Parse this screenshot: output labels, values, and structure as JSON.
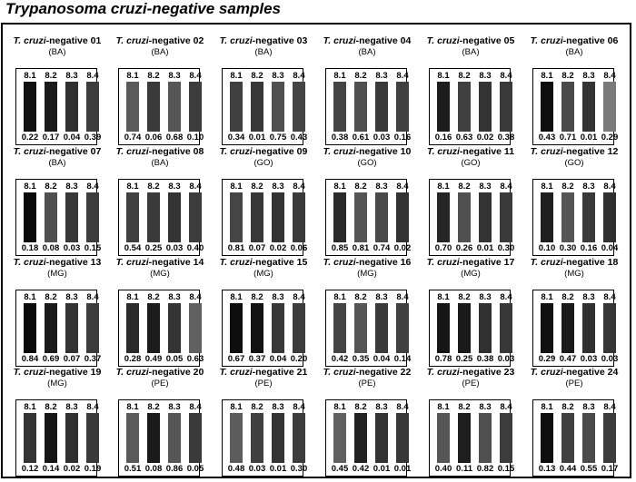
{
  "title": {
    "italic": "Trypanosoma cruzi",
    "rest": "-negative samples"
  },
  "name_prefix": "T. cruzi",
  "name_suffix": "-negative",
  "band_labels": [
    "8.1",
    "8.2",
    "8.3",
    "8.4"
  ],
  "samples": [
    {
      "num": "01",
      "region": "(BA)",
      "values": [
        "0.22",
        "0.17",
        "0.04",
        "0.39"
      ],
      "shades": [
        "#111",
        "#1a1a1a",
        "#303030",
        "#3c3c3c"
      ]
    },
    {
      "num": "02",
      "region": "(BA)",
      "values": [
        "0.74",
        "0.06",
        "0.68",
        "0.10"
      ],
      "shades": [
        "#5a5a5a",
        "#3a3a3a",
        "#555",
        "#3c3c3c"
      ]
    },
    {
      "num": "03",
      "region": "(BA)",
      "values": [
        "0.34",
        "0.01",
        "0.75",
        "0.43"
      ],
      "shades": [
        "#404040",
        "#383838",
        "#505050",
        "#444"
      ]
    },
    {
      "num": "04",
      "region": "(BA)",
      "values": [
        "0.38",
        "0.61",
        "0.03",
        "0.16"
      ],
      "shades": [
        "#444",
        "#505050",
        "#3a3a3a",
        "#404040"
      ]
    },
    {
      "num": "05",
      "region": "(BA)",
      "values": [
        "0.16",
        "0.63",
        "0.02",
        "0.38"
      ],
      "shades": [
        "#1c1c1c",
        "#404040",
        "#333",
        "#3a3a3a"
      ]
    },
    {
      "num": "06",
      "region": "(BA)",
      "values": [
        "0.43",
        "0.71",
        "0.01",
        "0.29"
      ],
      "shades": [
        "#0e0e0e",
        "#4a4a4a",
        "#333",
        "#7a7a7a"
      ]
    },
    {
      "num": "07",
      "region": "(BA)",
      "values": [
        "0.18",
        "0.08",
        "0.03",
        "0.15"
      ],
      "shades": [
        "#0a0a0a",
        "#505050",
        "#383838",
        "#3c3c3c"
      ]
    },
    {
      "num": "08",
      "region": "(BA)",
      "values": [
        "0.54",
        "0.25",
        "0.03",
        "0.40"
      ],
      "shades": [
        "#404040",
        "#3a3a3a",
        "#333",
        "#3c3c3c"
      ]
    },
    {
      "num": "09",
      "region": "(GO)",
      "values": [
        "0.81",
        "0.07",
        "0.02",
        "0.06"
      ],
      "shades": [
        "#454545",
        "#383838",
        "#333",
        "#3a3a3a"
      ]
    },
    {
      "num": "10",
      "region": "(GO)",
      "values": [
        "0.85",
        "0.81",
        "0.74",
        "0.02"
      ],
      "shades": [
        "#2a2a2a",
        "#555",
        "#4a4a4a",
        "#333"
      ]
    },
    {
      "num": "11",
      "region": "(GO)",
      "values": [
        "0.70",
        "0.26",
        "0.01",
        "0.30"
      ],
      "shades": [
        "#262626",
        "#505050",
        "#333",
        "#3a3a3a"
      ]
    },
    {
      "num": "12",
      "region": "(GO)",
      "values": [
        "0.10",
        "0.30",
        "0.16",
        "0.04"
      ],
      "shades": [
        "#1e1e1e",
        "#555",
        "#3a3a3a",
        "#303030"
      ]
    },
    {
      "num": "13",
      "region": "(MG)",
      "values": [
        "0.84",
        "0.69",
        "0.07",
        "0.37"
      ],
      "shades": [
        "#0a0a0a",
        "#1a1a1a",
        "#333",
        "#3c3c3c"
      ]
    },
    {
      "num": "14",
      "region": "(MG)",
      "values": [
        "0.28",
        "0.49",
        "0.05",
        "0.63"
      ],
      "shades": [
        "#2a2a2a",
        "#1c1c1c",
        "#333",
        "#606060"
      ]
    },
    {
      "num": "15",
      "region": "(MG)",
      "values": [
        "0.67",
        "0.37",
        "0.04",
        "0.20"
      ],
      "shades": [
        "#0e0e0e",
        "#121212",
        "#383838",
        "#3c3c3c"
      ]
    },
    {
      "num": "16",
      "region": "(MG)",
      "values": [
        "0.42",
        "0.35",
        "0.04",
        "0.14"
      ],
      "shades": [
        "#444",
        "#555",
        "#3a3a3a",
        "#404040"
      ]
    },
    {
      "num": "17",
      "region": "(MG)",
      "values": [
        "0.78",
        "0.25",
        "0.38",
        "0.03"
      ],
      "shades": [
        "#161616",
        "#1a1a1a",
        "#303030",
        "#383838"
      ]
    },
    {
      "num": "18",
      "region": "(MG)",
      "values": [
        "0.29",
        "0.47",
        "0.03",
        "0.03"
      ],
      "shades": [
        "#111",
        "#1a1a1a",
        "#303030",
        "#363636"
      ]
    },
    {
      "num": "19",
      "region": "(MG)",
      "values": [
        "0.12",
        "0.14",
        "0.02",
        "0.19"
      ],
      "shades": [
        "#333",
        "#161616",
        "#303030",
        "#3a3a3a"
      ]
    },
    {
      "num": "20",
      "region": "(PE)",
      "values": [
        "0.51",
        "0.08",
        "0.86",
        "0.05"
      ],
      "shades": [
        "#5a5a5a",
        "#1a1a1a",
        "#555",
        "#3a3a3a"
      ]
    },
    {
      "num": "21",
      "region": "(PE)",
      "values": [
        "0.48",
        "0.03",
        "0.01",
        "0.30"
      ],
      "shades": [
        "#5c5c5c",
        "#404040",
        "#333",
        "#3c3c3c"
      ]
    },
    {
      "num": "22",
      "region": "(PE)",
      "values": [
        "0.45",
        "0.42",
        "0.01",
        "0.01"
      ],
      "shades": [
        "#606060",
        "#222",
        "#333",
        "#383838"
      ]
    },
    {
      "num": "23",
      "region": "(PE)",
      "values": [
        "0.40",
        "0.11",
        "0.82",
        "0.15"
      ],
      "shades": [
        "#555",
        "#1e1e1e",
        "#505050",
        "#3c3c3c"
      ]
    },
    {
      "num": "24",
      "region": "(PE)",
      "values": [
        "0.13",
        "0.44",
        "0.55",
        "0.17"
      ],
      "shades": [
        "#0e0e0e",
        "#404040",
        "#4a4a4a",
        "#3c3c3c"
      ]
    }
  ]
}
